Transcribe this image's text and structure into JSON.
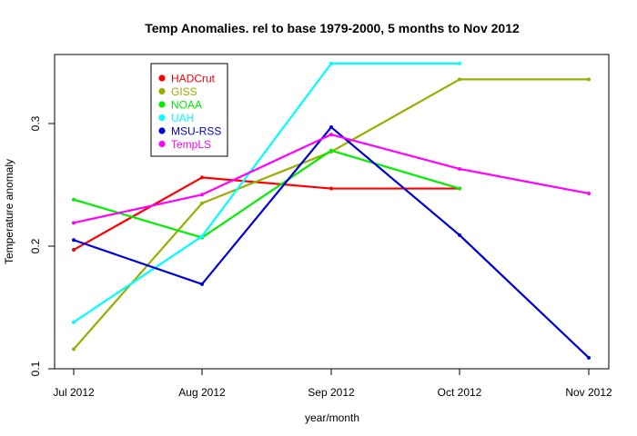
{
  "chart_data": {
    "type": "line",
    "title": "Temp Anomalies. rel to base 1979-2000, 5 months to Nov 2012",
    "xlabel": "year/month",
    "ylabel": "Temperature anomaly",
    "categories": [
      "Jul 2012",
      "Aug 2012",
      "Sep 2012",
      "Oct 2012",
      "Nov 2012"
    ],
    "yticks": [
      0.1,
      0.2,
      0.3
    ],
    "ytick_labels": [
      "0.1",
      "0.2",
      "0.3"
    ],
    "ylim": [
      0.1,
      0.36
    ],
    "grid": false,
    "legend_position": "top-left",
    "series": [
      {
        "name": "HADCrut",
        "color": "#ff0000",
        "values": [
          0.197,
          0.256,
          0.247,
          0.247,
          null
        ]
      },
      {
        "name": "GISS",
        "color": "#9aad00",
        "values": [
          0.116,
          0.235,
          0.277,
          0.336,
          0.336
        ]
      },
      {
        "name": "NOAA",
        "color": "#00ee00",
        "values": [
          0.238,
          0.207,
          0.278,
          0.247,
          null
        ]
      },
      {
        "name": "UAH",
        "color": "#00ffff",
        "values": [
          0.138,
          0.208,
          0.349,
          0.349,
          null
        ]
      },
      {
        "name": "MSU-RSS",
        "color": "#0000dd",
        "values": [
          0.205,
          0.169,
          0.297,
          0.209,
          0.109
        ]
      },
      {
        "name": "TempLS",
        "color": "#ff00ff",
        "values": [
          0.219,
          0.242,
          0.291,
          0.263,
          0.243
        ]
      }
    ]
  }
}
